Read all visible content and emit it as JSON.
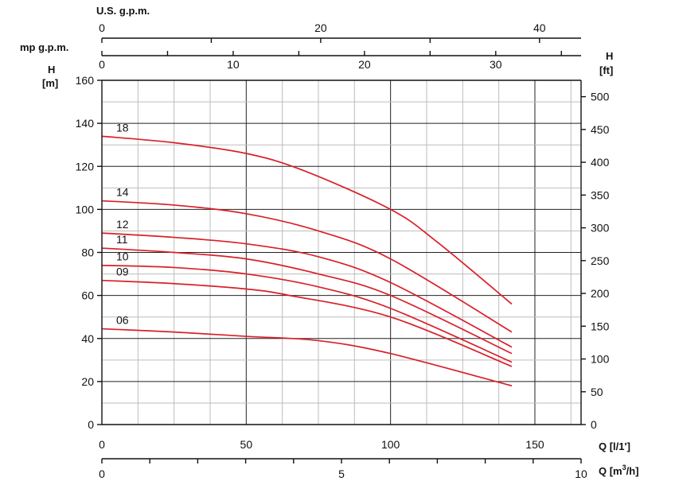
{
  "chart_data": {
    "type": "line",
    "axes": {
      "us_gpm": {
        "label": "U.S. g.p.m.",
        "ticks": [
          0,
          20,
          40
        ],
        "range": [
          0,
          43.8
        ]
      },
      "imp_gpm": {
        "label": "mp g.p.m.",
        "ticks": [
          0,
          10,
          20,
          30
        ],
        "range": [
          0,
          36.5
        ]
      },
      "h_m": {
        "label_line1": "H",
        "label_line2": "[m]",
        "ticks": [
          0,
          20,
          40,
          60,
          80,
          100,
          120,
          140,
          160
        ],
        "range": [
          0,
          160
        ]
      },
      "h_ft": {
        "label_line1": "H",
        "label_line2": "[ft]",
        "ticks": [
          0,
          50,
          100,
          150,
          200,
          250,
          300,
          350,
          400,
          450,
          500
        ],
        "range": [
          0,
          525
        ]
      },
      "q_lmin": {
        "label": "Q [l/1']",
        "ticks": [
          0,
          50,
          100,
          150
        ],
        "range": [
          0,
          166
        ]
      },
      "q_m3h": {
        "label": "Q [m",
        "label_sup": "3",
        "label_end": "/h]",
        "ticks": [
          0,
          5,
          10
        ],
        "range": [
          0,
          10
        ]
      }
    },
    "series": [
      {
        "name": "18",
        "x": [
          0,
          25,
          50,
          70,
          100,
          116,
          142
        ],
        "y": [
          134,
          131,
          126,
          118,
          100,
          85,
          56
        ]
      },
      {
        "name": "14",
        "x": [
          0,
          25,
          50,
          75,
          100,
          142
        ],
        "y": [
          104,
          102,
          98,
          90,
          77,
          43
        ]
      },
      {
        "name": "12",
        "x": [
          0,
          25,
          50,
          75,
          100,
          142
        ],
        "y": [
          89,
          87,
          84,
          78,
          66,
          36
        ]
      },
      {
        "name": "11",
        "x": [
          0,
          25,
          50,
          75,
          100,
          142
        ],
        "y": [
          82,
          80,
          77,
          70,
          60,
          33
        ]
      },
      {
        "name": "10",
        "x": [
          0,
          25,
          50,
          75,
          100,
          142
        ],
        "y": [
          74,
          73,
          70,
          64,
          54,
          29
        ]
      },
      {
        "name": "09",
        "x": [
          0,
          25,
          50,
          65,
          100,
          142
        ],
        "y": [
          67,
          65.5,
          63,
          60,
          50,
          27
        ]
      },
      {
        "name": "06",
        "x": [
          0,
          25,
          50,
          75,
          100,
          142
        ],
        "y": [
          44.5,
          43,
          41,
          39,
          33,
          18
        ]
      }
    ],
    "colors": {
      "curve": "#d9202a",
      "grid_major": "#222222",
      "grid_minor": "#bdbdbd"
    },
    "grid": true
  }
}
